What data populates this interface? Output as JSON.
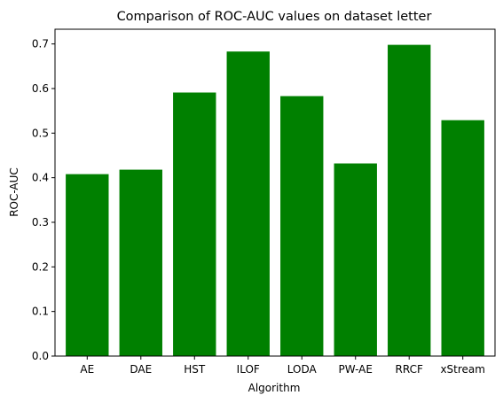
{
  "chart_data": {
    "type": "bar",
    "title": "Comparison of ROC-AUC values on dataset letter",
    "xlabel": "Algorithm",
    "ylabel": "ROC-AUC",
    "categories": [
      "AE",
      "DAE",
      "HST",
      "ILOF",
      "LODA",
      "PW-AE",
      "RRCF",
      "xStream"
    ],
    "values": [
      0.408,
      0.418,
      0.591,
      0.683,
      0.583,
      0.432,
      0.698,
      0.529
    ],
    "ylim": [
      0,
      0.733
    ],
    "yticks": [
      0.0,
      0.1,
      0.2,
      0.3,
      0.4,
      0.5,
      0.6,
      0.7
    ],
    "ytick_labels": [
      "0.0",
      "0.1",
      "0.2",
      "0.3",
      "0.4",
      "0.5",
      "0.6",
      "0.7"
    ],
    "bar_color": "#008000",
    "grid": false,
    "legend": "none"
  }
}
